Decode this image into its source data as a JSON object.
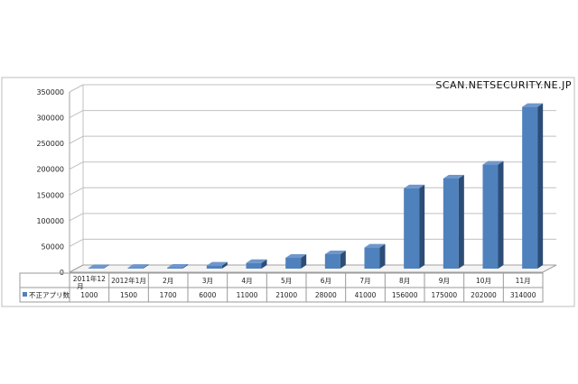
{
  "watermark": "SCAN.NETSECURITY.NE.JP",
  "colors": {
    "bar_front": "#4f81bd",
    "bar_side": "#2c4d75",
    "bar_top": "#6f97cc",
    "grid": "#c0c0c0",
    "axis": "#a0a0a0",
    "frame": "#bdbdbd",
    "table_border": "#9a9a9a"
  },
  "chart_data": {
    "type": "bar",
    "categories": [
      "2011年12月",
      "2012年1月",
      "2月",
      "3月",
      "4月",
      "5月",
      "6月",
      "7月",
      "8月",
      "9月",
      "10月",
      "11月"
    ],
    "series": [
      {
        "name": "不正アプリ数",
        "values": [
          1000,
          1500,
          1700,
          6000,
          11000,
          21000,
          28000,
          41000,
          156000,
          175000,
          202000,
          314000
        ]
      }
    ],
    "value_labels": [
      "1000",
      "1500",
      "1700",
      "6000",
      "11000",
      "21000",
      "28000",
      "41000",
      "156000",
      "175000",
      "202000",
      "314000"
    ],
    "yticks": [
      "0",
      "50000",
      "100000",
      "150000",
      "200000",
      "250000",
      "300000",
      "350000"
    ],
    "ylim": [
      0,
      350000
    ],
    "grid": true,
    "legend": "data-table",
    "style": "3d-column"
  }
}
